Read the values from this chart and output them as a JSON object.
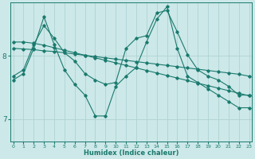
{
  "title": "",
  "xlabel": "Humidex (Indice chaleur)",
  "background_color": "#cce8e8",
  "line_color": "#1a7a6e",
  "grid_color": "#aacfcf",
  "x_ticks": [
    0,
    1,
    2,
    3,
    4,
    5,
    6,
    7,
    8,
    9,
    10,
    11,
    12,
    13,
    14,
    15,
    16,
    17,
    18,
    19,
    20,
    21,
    22,
    23
  ],
  "y_ticks": [
    7,
    8
  ],
  "ylim": [
    6.65,
    8.85
  ],
  "xlim": [
    -0.3,
    23.3
  ],
  "line1_x": [
    0,
    1,
    2,
    3,
    4,
    5,
    6,
    7,
    8,
    9,
    10,
    11,
    12,
    13,
    14,
    15,
    16,
    17,
    18,
    19,
    20,
    21,
    22,
    23
  ],
  "line1_y": [
    7.68,
    7.78,
    8.18,
    8.48,
    8.28,
    8.05,
    7.92,
    7.72,
    7.62,
    7.55,
    7.58,
    8.12,
    8.28,
    8.32,
    8.68,
    8.72,
    8.38,
    8.02,
    7.78,
    7.68,
    7.62,
    7.52,
    7.38,
    7.38
  ],
  "line2_x": [
    0,
    1,
    2,
    3,
    4,
    5,
    6,
    7,
    8,
    9,
    10,
    11,
    12,
    13,
    14,
    15,
    16,
    17,
    18,
    19,
    20,
    21,
    22,
    23
  ],
  "line2_y": [
    8.22,
    8.22,
    8.2,
    8.17,
    8.13,
    8.09,
    8.05,
    8.01,
    7.97,
    7.93,
    7.89,
    7.85,
    7.81,
    7.77,
    7.73,
    7.69,
    7.65,
    7.61,
    7.57,
    7.53,
    7.49,
    7.45,
    7.41,
    7.37
  ],
  "line3_x": [
    0,
    1,
    2,
    3,
    4,
    5,
    6,
    7,
    8,
    9,
    10,
    11,
    12,
    13,
    14,
    15,
    16,
    17,
    18,
    19,
    20,
    21,
    22,
    23
  ],
  "line3_y": [
    8.12,
    8.11,
    8.1,
    8.08,
    8.07,
    8.05,
    8.03,
    8.01,
    7.99,
    7.97,
    7.95,
    7.93,
    7.91,
    7.89,
    7.87,
    7.85,
    7.83,
    7.81,
    7.79,
    7.77,
    7.75,
    7.73,
    7.71,
    7.68
  ],
  "line4_x": [
    0,
    1,
    2,
    3,
    4,
    5,
    6,
    7,
    8,
    9,
    10,
    11,
    12,
    13,
    14,
    15,
    16,
    17,
    18,
    19,
    20,
    21,
    22,
    23
  ],
  "line4_y": [
    7.62,
    7.72,
    8.12,
    8.62,
    8.18,
    7.78,
    7.55,
    7.38,
    7.05,
    7.05,
    7.52,
    7.68,
    7.82,
    8.22,
    8.58,
    8.78,
    8.12,
    7.68,
    7.58,
    7.48,
    7.38,
    7.28,
    7.18,
    7.18
  ]
}
